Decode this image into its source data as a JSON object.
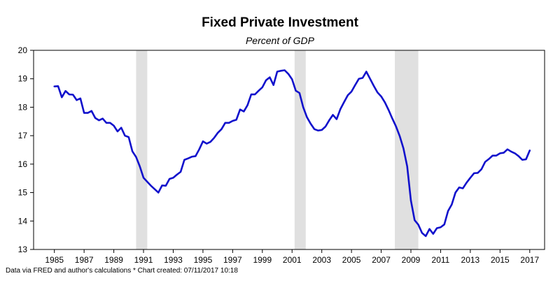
{
  "chart_data": {
    "type": "line",
    "title": "Fixed Private Investment",
    "subtitle": "Percent of GDP",
    "xlabel": "",
    "ylabel": "",
    "ylim": [
      13,
      20
    ],
    "xlim": [
      1983.6,
      2018.0
    ],
    "y_ticks": [
      13,
      14,
      15,
      16,
      17,
      18,
      19,
      20
    ],
    "x_ticks": [
      1985,
      1987,
      1989,
      1991,
      1993,
      1995,
      1997,
      1999,
      2001,
      2003,
      2005,
      2007,
      2009,
      2011,
      2013,
      2015,
      2017
    ],
    "x_tick_labels": [
      "1985",
      "1987",
      "1989",
      "1991",
      "1993",
      "1995",
      "1997",
      "1999",
      "2001",
      "2003",
      "2005",
      "2007",
      "2009",
      "2011",
      "2013",
      "2015",
      "2017"
    ],
    "grid": false,
    "recessions": [
      {
        "start": 1990.5,
        "end": 1991.25
      },
      {
        "start": 2001.17,
        "end": 2001.92
      },
      {
        "start": 2007.92,
        "end": 2009.5
      }
    ],
    "series": [
      {
        "color": "#1111cc",
        "x": [
          1985.0,
          1985.25,
          1985.5,
          1985.75,
          1986.0,
          1986.25,
          1986.5,
          1986.75,
          1987.0,
          1987.25,
          1987.5,
          1987.75,
          1988.0,
          1988.25,
          1988.5,
          1988.75,
          1989.0,
          1989.25,
          1989.5,
          1989.75,
          1990.0,
          1990.25,
          1990.5,
          1990.75,
          1991.0,
          1991.25,
          1991.5,
          1991.75,
          1992.0,
          1992.25,
          1992.5,
          1992.75,
          1993.0,
          1993.25,
          1993.5,
          1993.75,
          1994.0,
          1994.25,
          1994.5,
          1994.75,
          1995.0,
          1995.25,
          1995.5,
          1995.75,
          1996.0,
          1996.25,
          1996.5,
          1996.75,
          1997.0,
          1997.25,
          1997.5,
          1997.75,
          1998.0,
          1998.25,
          1998.5,
          1998.75,
          1999.0,
          1999.25,
          1999.5,
          1999.75,
          2000.0,
          2000.25,
          2000.5,
          2000.75,
          2001.0,
          2001.25,
          2001.5,
          2001.75,
          2002.0,
          2002.25,
          2002.5,
          2002.75,
          2003.0,
          2003.25,
          2003.5,
          2003.75,
          2004.0,
          2004.25,
          2004.5,
          2004.75,
          2005.0,
          2005.25,
          2005.5,
          2005.75,
          2006.0,
          2006.25,
          2006.5,
          2006.75,
          2007.0,
          2007.25,
          2007.5,
          2007.75,
          2008.0,
          2008.25,
          2008.5,
          2008.75,
          2009.0,
          2009.25,
          2009.5,
          2009.75,
          2010.0,
          2010.25,
          2010.5,
          2010.75,
          2011.0,
          2011.25,
          2011.5,
          2011.75,
          2012.0,
          2012.25,
          2012.5,
          2012.75,
          2013.0,
          2013.25,
          2013.5,
          2013.75,
          2014.0,
          2014.25,
          2014.5,
          2014.75,
          2015.0,
          2015.25,
          2015.5,
          2015.75,
          2016.0,
          2016.25,
          2016.5,
          2016.75,
          2017.0
        ],
        "y": [
          18.73,
          18.74,
          18.35,
          18.57,
          18.45,
          18.44,
          18.25,
          18.31,
          17.8,
          17.8,
          17.87,
          17.62,
          17.54,
          17.6,
          17.45,
          17.45,
          17.35,
          17.15,
          17.28,
          17.0,
          16.95,
          16.45,
          16.25,
          15.92,
          15.52,
          15.38,
          15.24,
          15.12,
          15.0,
          15.25,
          15.24,
          15.48,
          15.52,
          15.63,
          15.73,
          16.15,
          16.2,
          16.26,
          16.28,
          16.52,
          16.8,
          16.72,
          16.78,
          16.92,
          17.1,
          17.23,
          17.45,
          17.45,
          17.52,
          17.56,
          17.92,
          17.85,
          18.07,
          18.45,
          18.45,
          18.58,
          18.7,
          18.95,
          19.05,
          18.78,
          19.25,
          19.28,
          19.3,
          19.17,
          18.98,
          18.58,
          18.5,
          18.0,
          17.65,
          17.42,
          17.23,
          17.18,
          17.2,
          17.32,
          17.54,
          17.73,
          17.58,
          17.93,
          18.18,
          18.42,
          18.55,
          18.78,
          19.0,
          19.03,
          19.25,
          19.0,
          18.75,
          18.52,
          18.38,
          18.17,
          17.9,
          17.6,
          17.32,
          16.98,
          16.55,
          15.92,
          14.72,
          14.03,
          13.87,
          13.58,
          13.47,
          13.72,
          13.55,
          13.75,
          13.78,
          13.88,
          14.35,
          14.58,
          15.0,
          15.18,
          15.15,
          15.35,
          15.52,
          15.68,
          15.69,
          15.82,
          16.08,
          16.18,
          16.3,
          16.3,
          16.38,
          16.4,
          16.52,
          16.44,
          16.38,
          16.28,
          16.15,
          16.17,
          16.48
        ]
      }
    ]
  },
  "footnote": "Data via FRED and author's calculations * Chart created: 07/11/2017 10:18"
}
